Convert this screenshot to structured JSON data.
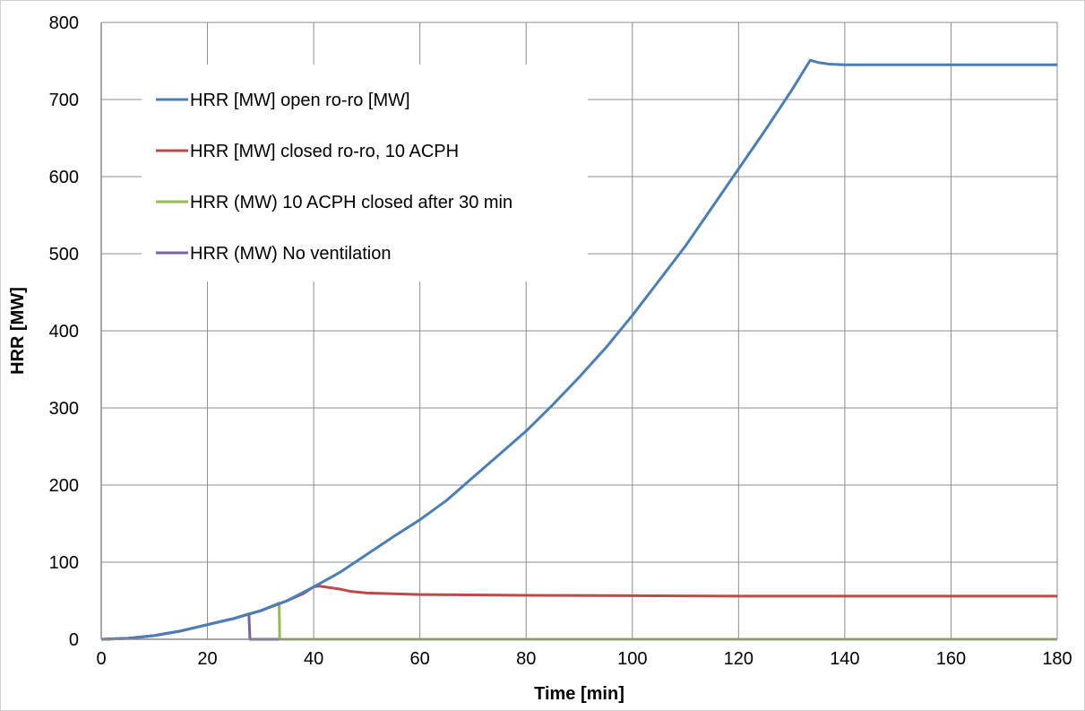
{
  "chart_data": {
    "type": "line",
    "title": "",
    "xlabel": "Time [min]",
    "ylabel": "HRR [MW]",
    "xlim": [
      0,
      180
    ],
    "ylim": [
      0,
      800
    ],
    "x_ticks": [
      0,
      20,
      40,
      60,
      80,
      100,
      120,
      140,
      160,
      180
    ],
    "y_ticks": [
      0,
      100,
      200,
      300,
      400,
      500,
      600,
      700,
      800
    ],
    "grid": true,
    "legend_position": "top-left",
    "series": [
      {
        "name": "HRR [MW] open ro-ro [MW]",
        "color": "#4a7ebb",
        "points": [
          [
            0,
            0
          ],
          [
            5,
            1.2
          ],
          [
            10,
            4.8
          ],
          [
            15,
            10.8
          ],
          [
            20,
            19
          ],
          [
            25,
            27
          ],
          [
            28,
            33
          ],
          [
            30,
            37
          ],
          [
            35,
            50
          ],
          [
            40,
            68
          ],
          [
            45,
            87
          ],
          [
            50,
            110
          ],
          [
            55,
            133
          ],
          [
            60,
            155
          ],
          [
            65,
            180
          ],
          [
            70,
            210
          ],
          [
            75,
            240
          ],
          [
            80,
            270
          ],
          [
            85,
            304
          ],
          [
            90,
            340
          ],
          [
            95,
            378
          ],
          [
            100,
            420
          ],
          [
            105,
            465
          ],
          [
            110,
            510
          ],
          [
            115,
            560
          ],
          [
            120,
            610
          ],
          [
            125,
            660
          ],
          [
            130,
            712
          ],
          [
            133.5,
            751
          ],
          [
            135,
            748
          ],
          [
            137,
            746
          ],
          [
            140,
            745
          ],
          [
            145,
            745
          ],
          [
            150,
            745
          ],
          [
            155,
            745
          ],
          [
            160,
            745
          ],
          [
            165,
            745
          ],
          [
            170,
            745
          ],
          [
            175,
            745
          ],
          [
            180,
            745
          ]
        ]
      },
      {
        "name": "HRR [MW] closed ro-ro, 10 ACPH",
        "color": "#be4b48",
        "points": [
          [
            0,
            0
          ],
          [
            5,
            1.2
          ],
          [
            10,
            4.8
          ],
          [
            15,
            10.8
          ],
          [
            20,
            19
          ],
          [
            25,
            27
          ],
          [
            28,
            33
          ],
          [
            30,
            37
          ],
          [
            35,
            50
          ],
          [
            38,
            59
          ],
          [
            40,
            68
          ],
          [
            41,
            69
          ],
          [
            43,
            67
          ],
          [
            45,
            65
          ],
          [
            47,
            62
          ],
          [
            50,
            60
          ],
          [
            55,
            59
          ],
          [
            60,
            58
          ],
          [
            70,
            57.5
          ],
          [
            80,
            57
          ],
          [
            100,
            56.5
          ],
          [
            120,
            56
          ],
          [
            140,
            56
          ],
          [
            160,
            56
          ],
          [
            180,
            56
          ]
        ]
      },
      {
        "name": "HRR (MW) 10 ACPH closed after 30 min",
        "color": "#98b954",
        "points": [
          [
            0,
            0
          ],
          [
            5,
            1.2
          ],
          [
            10,
            4.8
          ],
          [
            15,
            10.8
          ],
          [
            20,
            19
          ],
          [
            25,
            27
          ],
          [
            28,
            33
          ],
          [
            30,
            37
          ],
          [
            33.5,
            47
          ],
          [
            33.6,
            0
          ],
          [
            180,
            0
          ]
        ]
      },
      {
        "name": "HRR (MW) No ventilation",
        "color": "#7d60a0",
        "points": [
          [
            0,
            0
          ],
          [
            5,
            1.2
          ],
          [
            10,
            4.8
          ],
          [
            15,
            10.8
          ],
          [
            20,
            19
          ],
          [
            25,
            27
          ],
          [
            27.8,
            33
          ],
          [
            28,
            0
          ],
          [
            180,
            0
          ]
        ]
      }
    ]
  }
}
